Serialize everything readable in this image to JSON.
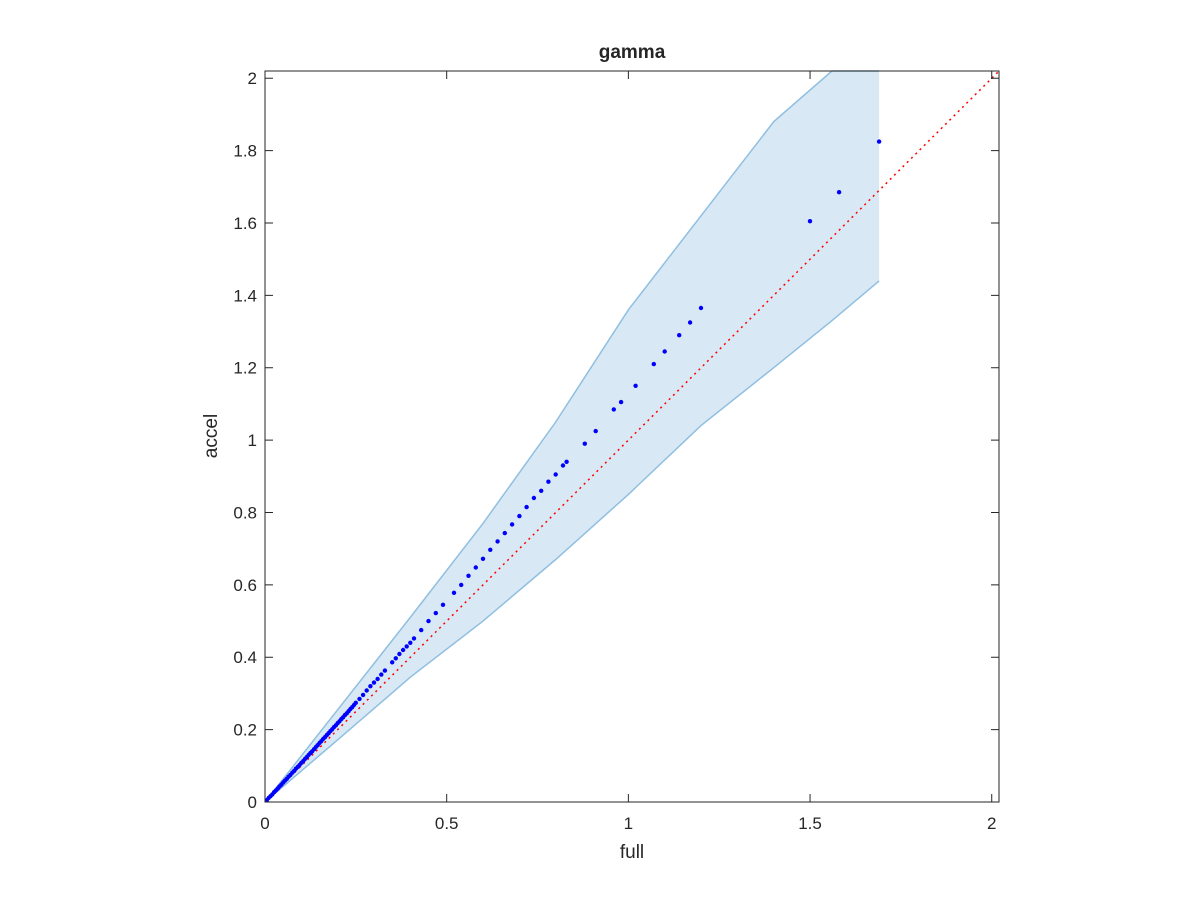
{
  "chart_data": {
    "type": "scatter",
    "title": "gamma",
    "xlabel": "full",
    "ylabel": "accel",
    "xlim": [
      0,
      2.02
    ],
    "ylim": [
      0,
      2.02
    ],
    "xticks": [
      0,
      0.5,
      1,
      1.5,
      2
    ],
    "yticks": [
      0,
      0.2,
      0.4,
      0.6,
      0.8,
      1,
      1.2,
      1.4,
      1.6,
      1.8,
      2
    ],
    "xtick_labels": [
      "0",
      "0.5",
      "1",
      "1.5",
      "2"
    ],
    "ytick_labels": [
      "0",
      "0.2",
      "0.4",
      "0.6",
      "0.8",
      "1",
      "1.2",
      "1.4",
      "1.6",
      "1.8",
      "2"
    ],
    "grid": false,
    "series": [
      {
        "kind": "points",
        "color": "#0000ff",
        "x": [
          0.005,
          0.01,
          0.015,
          0.02,
          0.025,
          0.03,
          0.035,
          0.04,
          0.045,
          0.05,
          0.055,
          0.06,
          0.065,
          0.07,
          0.075,
          0.08,
          0.085,
          0.09,
          0.095,
          0.1,
          0.105,
          0.11,
          0.115,
          0.12,
          0.125,
          0.13,
          0.135,
          0.14,
          0.145,
          0.15,
          0.155,
          0.16,
          0.165,
          0.17,
          0.175,
          0.18,
          0.185,
          0.19,
          0.195,
          0.2,
          0.205,
          0.21,
          0.215,
          0.22,
          0.225,
          0.23,
          0.235,
          0.24,
          0.245,
          0.25,
          0.26,
          0.27,
          0.28,
          0.29,
          0.3,
          0.31,
          0.32,
          0.33,
          0.35,
          0.36,
          0.37,
          0.38,
          0.39,
          0.4,
          0.41,
          0.43,
          0.45,
          0.47,
          0.49,
          0.52,
          0.54,
          0.56,
          0.58,
          0.6,
          0.62,
          0.64,
          0.66,
          0.68,
          0.7,
          0.72,
          0.74,
          0.76,
          0.78,
          0.8,
          0.82,
          0.83,
          0.88,
          0.91,
          0.96,
          0.98,
          1.02,
          1.07,
          1.1,
          1.14,
          1.17,
          1.2,
          1.5,
          1.58,
          1.69
        ],
        "y": [
          0.005,
          0.011,
          0.016,
          0.021,
          0.027,
          0.032,
          0.037,
          0.043,
          0.048,
          0.054,
          0.059,
          0.064,
          0.07,
          0.075,
          0.081,
          0.086,
          0.092,
          0.097,
          0.102,
          0.108,
          0.113,
          0.119,
          0.124,
          0.13,
          0.135,
          0.14,
          0.146,
          0.152,
          0.157,
          0.163,
          0.168,
          0.174,
          0.179,
          0.185,
          0.19,
          0.196,
          0.201,
          0.207,
          0.212,
          0.218,
          0.223,
          0.229,
          0.234,
          0.24,
          0.245,
          0.251,
          0.257,
          0.262,
          0.268,
          0.274,
          0.285,
          0.296,
          0.308,
          0.32,
          0.33,
          0.34,
          0.352,
          0.363,
          0.386,
          0.397,
          0.409,
          0.42,
          0.43,
          0.44,
          0.452,
          0.475,
          0.5,
          0.522,
          0.545,
          0.578,
          0.6,
          0.625,
          0.648,
          0.672,
          0.697,
          0.72,
          0.743,
          0.767,
          0.79,
          0.815,
          0.84,
          0.86,
          0.885,
          0.905,
          0.93,
          0.94,
          0.99,
          1.025,
          1.085,
          1.105,
          1.15,
          1.21,
          1.245,
          1.29,
          1.325,
          1.365,
          1.605,
          1.685,
          1.825
        ]
      },
      {
        "kind": "reference-line",
        "style": "dotted",
        "color": "#ff0000",
        "x": [
          0,
          2.02
        ],
        "y": [
          0,
          2.02
        ]
      },
      {
        "kind": "band",
        "fill": "#d9e8f5",
        "stroke": "#8fbfe0",
        "x": [
          0,
          0.2,
          0.4,
          0.6,
          0.8,
          1,
          1.2,
          1.4,
          1.56,
          1.69
        ],
        "upper": [
          0,
          0.255,
          0.51,
          0.77,
          1.05,
          1.36,
          1.62,
          1.88,
          2.02,
          2.02
        ],
        "lower": [
          0,
          0.172,
          0.345,
          0.5,
          0.67,
          0.85,
          1.04,
          1.2,
          1.33,
          1.44
        ]
      }
    ]
  }
}
